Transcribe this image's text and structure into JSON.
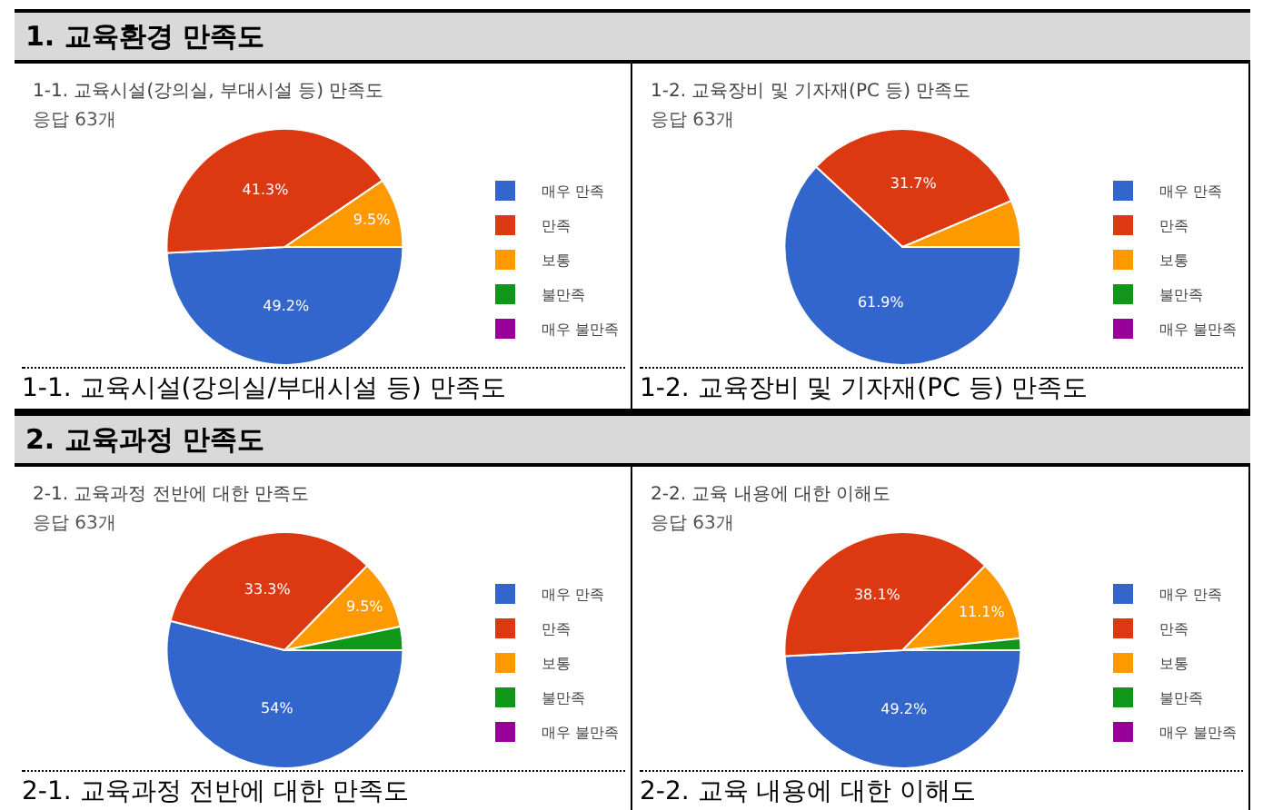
{
  "chart_data": [
    {
      "type": "pie",
      "title": "1-1. 교육시설(강의실, 부대시설 등) 만족도",
      "subtitle": "응답 63개",
      "annotations": [
        "1. 교육환경 만족도",
        "1-1. 교육시설(강의실/부대시설 등) 만족도"
      ],
      "categories": [
        "매우 만족",
        "만족",
        "보통",
        "불만족",
        "매우 불만족"
      ],
      "values": [
        49.2,
        41.3,
        9.5,
        0,
        0
      ],
      "value_labels": [
        "49.2%",
        "41.3%",
        "9.5%",
        null,
        null
      ],
      "colors": [
        "#3366cc",
        "#dc3912",
        "#ff9900",
        "#109618",
        "#990099"
      ],
      "legend": "right"
    },
    {
      "type": "pie",
      "title": "1-2. 교육장비 및 기자재(PC 등) 만족도",
      "subtitle": "응답 63개",
      "annotations": [
        "1-2. 교육장비 및 기자재(PC 등) 만족도"
      ],
      "categories": [
        "매우 만족",
        "만족",
        "보통",
        "불만족",
        "매우 불만족"
      ],
      "values": [
        61.9,
        31.7,
        6.4,
        0,
        0
      ],
      "value_labels": [
        "61.9%",
        "31.7%",
        null,
        null,
        null
      ],
      "colors": [
        "#3366cc",
        "#dc3912",
        "#ff9900",
        "#109618",
        "#990099"
      ],
      "legend": "right"
    },
    {
      "type": "pie",
      "title": "2-1. 교육과정 전반에 대한 만족도",
      "subtitle": "응답 63개",
      "annotations": [
        "2. 교육과정 만족도",
        "2-1. 교육과정 전반에 대한 만족도"
      ],
      "categories": [
        "매우 만족",
        "만족",
        "보통",
        "불만족",
        "매우 불만족"
      ],
      "values": [
        54,
        33.3,
        9.5,
        3.2,
        0
      ],
      "value_labels": [
        "54%",
        "33.3%",
        "9.5%",
        null,
        null
      ],
      "colors": [
        "#3366cc",
        "#dc3912",
        "#ff9900",
        "#109618",
        "#990099"
      ],
      "legend": "right"
    },
    {
      "type": "pie",
      "title": "2-2. 교육 내용에 대한 이해도",
      "subtitle": "응답 63개",
      "annotations": [
        "2-2. 교육 내용에 대한 이해도"
      ],
      "categories": [
        "매우 만족",
        "만족",
        "보통",
        "불만족",
        "매우 불만족"
      ],
      "values": [
        49.2,
        38.1,
        11.1,
        1.6,
        0
      ],
      "value_labels": [
        "49.2%",
        "38.1%",
        "11.1%",
        null,
        null
      ],
      "colors": [
        "#3366cc",
        "#dc3912",
        "#ff9900",
        "#109618",
        "#990099"
      ],
      "legend": "right"
    }
  ]
}
